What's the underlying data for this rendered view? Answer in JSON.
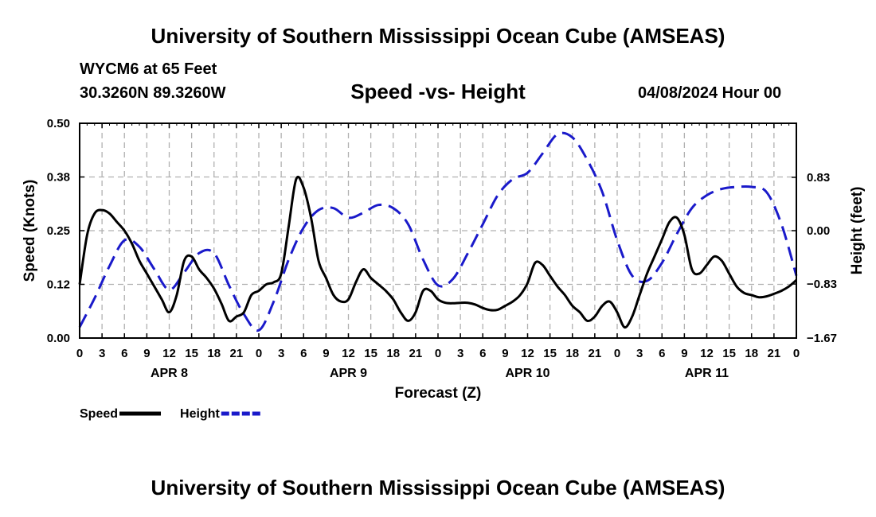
{
  "header": {
    "title": "University of Southern Mississippi Ocean Cube (AMSEAS)",
    "station": "WYCM6 at 65 Feet",
    "coordinates": "30.3260N  89.3260W",
    "subtitle": "Speed -vs- Height",
    "datetime": "04/08/2024 Hour 00"
  },
  "footer": {
    "title": "University of Southern Mississippi Ocean Cube (AMSEAS)"
  },
  "chart_data": {
    "type": "line",
    "xlabel": "Forecast (Z)",
    "ylabel": "Speed (Knots)",
    "y2label": "Height (feet)",
    "x_range": [
      0,
      96
    ],
    "x_ticks": [
      0,
      3,
      6,
      9,
      12,
      15,
      18,
      21,
      24,
      27,
      30,
      33,
      36,
      39,
      42,
      45,
      48,
      51,
      54,
      57,
      60,
      63,
      66,
      69,
      72,
      75,
      78,
      81,
      84,
      87,
      90,
      93,
      96
    ],
    "x_tick_labels": [
      "0",
      "3",
      "6",
      "9",
      "12",
      "15",
      "18",
      "21",
      "0",
      "3",
      "6",
      "9",
      "12",
      "15",
      "18",
      "21",
      "0",
      "3",
      "6",
      "9",
      "12",
      "15",
      "18",
      "21",
      "0",
      "3",
      "6",
      "9",
      "12",
      "15",
      "18",
      "21",
      "0"
    ],
    "day_labels": [
      {
        "label": "APR 8",
        "x": 12
      },
      {
        "label": "APR 9",
        "x": 36
      },
      {
        "label": "APR 10",
        "x": 60
      },
      {
        "label": "APR 11",
        "x": 84
      }
    ],
    "ylim": [
      0,
      0.5
    ],
    "y_ticks": [
      0,
      0.125,
      0.25,
      0.375,
      0.5
    ],
    "y_tick_labels": [
      "0.00",
      "0.12",
      "0.25",
      "0.38",
      "0.50"
    ],
    "y2lim": [
      -1.67,
      1.67
    ],
    "y2_ticks": [
      -1.67,
      -0.83,
      0,
      0.83
    ],
    "y2_tick_labels": [
      "−1.67",
      "−0.83",
      "0.00",
      "0.83"
    ],
    "grid": true,
    "legend_position": "bottom-left",
    "series": [
      {
        "name": "Speed",
        "axis": "left",
        "color": "#000000",
        "dash": "solid",
        "x": [
          0,
          1,
          2,
          3,
          4,
          5,
          6,
          7,
          8,
          9,
          10,
          11,
          12,
          13,
          14,
          15,
          16,
          17,
          18,
          19,
          20,
          21,
          22,
          23,
          24,
          25,
          26,
          27,
          28,
          29,
          30,
          31,
          32,
          33,
          34,
          35,
          36,
          37,
          38,
          39,
          40,
          41,
          42,
          43,
          44,
          45,
          46,
          47,
          48,
          49,
          50,
          51,
          52,
          53,
          54,
          55,
          56,
          57,
          58,
          59,
          60,
          61,
          62,
          63,
          64,
          65,
          66,
          67,
          68,
          69,
          70,
          71,
          72,
          73,
          74,
          75,
          76,
          77,
          78,
          79,
          80,
          81,
          82,
          83,
          84,
          85,
          86,
          87,
          88,
          89,
          90,
          91,
          92,
          93,
          94,
          95,
          96
        ],
        "values": [
          0.125,
          0.24,
          0.29,
          0.298,
          0.29,
          0.27,
          0.25,
          0.22,
          0.18,
          0.15,
          0.12,
          0.09,
          0.06,
          0.1,
          0.18,
          0.19,
          0.16,
          0.14,
          0.115,
          0.08,
          0.04,
          0.05,
          0.06,
          0.1,
          0.11,
          0.125,
          0.13,
          0.15,
          0.26,
          0.37,
          0.35,
          0.28,
          0.18,
          0.14,
          0.1,
          0.085,
          0.09,
          0.13,
          0.16,
          0.14,
          0.125,
          0.11,
          0.09,
          0.06,
          0.04,
          0.06,
          0.11,
          0.11,
          0.09,
          0.082,
          0.081,
          0.082,
          0.082,
          0.078,
          0.07,
          0.065,
          0.066,
          0.075,
          0.085,
          0.1,
          0.128,
          0.175,
          0.17,
          0.145,
          0.12,
          0.1,
          0.075,
          0.06,
          0.04,
          0.05,
          0.075,
          0.085,
          0.06,
          0.025,
          0.05,
          0.1,
          0.15,
          0.19,
          0.23,
          0.27,
          0.28,
          0.24,
          0.16,
          0.15,
          0.17,
          0.19,
          0.18,
          0.15,
          0.12,
          0.105,
          0.1,
          0.095,
          0.097,
          0.103,
          0.11,
          0.12,
          0.135
        ]
      },
      {
        "name": "Height",
        "axis": "right",
        "color": "#1a1aca",
        "dash": "dashed",
        "x": [
          0,
          2,
          4,
          6,
          8,
          10,
          12,
          14,
          16,
          18,
          20,
          22,
          24,
          26,
          28,
          30,
          32,
          34,
          36,
          38,
          40,
          42,
          44,
          46,
          48,
          50,
          52,
          54,
          56,
          58,
          60,
          62,
          64,
          66,
          68,
          70,
          72,
          74,
          76,
          78,
          80,
          82,
          84,
          86,
          88,
          90,
          92,
          94,
          96
        ],
        "values": [
          -1.5,
          -1.05,
          -0.55,
          -0.15,
          -0.25,
          -0.6,
          -0.92,
          -0.65,
          -0.35,
          -0.35,
          -0.85,
          -1.3,
          -1.55,
          -1.1,
          -0.45,
          0.05,
          0.32,
          0.35,
          0.2,
          0.28,
          0.4,
          0.35,
          0.1,
          -0.45,
          -0.85,
          -0.75,
          -0.35,
          0.1,
          0.55,
          0.8,
          0.9,
          1.2,
          1.5,
          1.45,
          1.1,
          0.6,
          -0.15,
          -0.7,
          -0.78,
          -0.5,
          -0.05,
          0.35,
          0.55,
          0.65,
          0.68,
          0.68,
          0.6,
          0.1,
          -0.7
        ]
      }
    ]
  }
}
